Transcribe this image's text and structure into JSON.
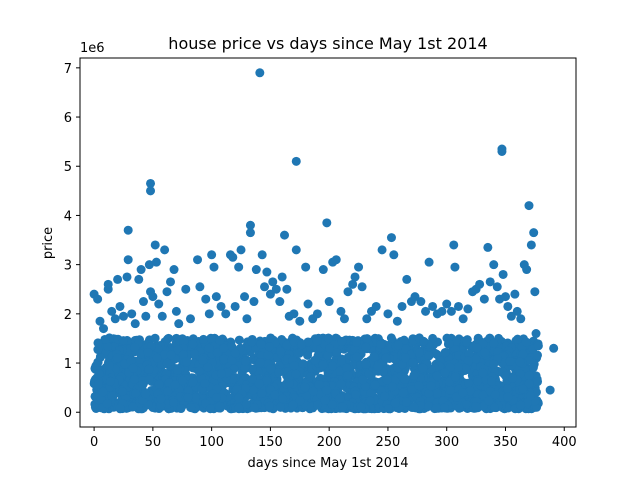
{
  "chart_data": {
    "type": "scatter",
    "title": "house price vs days since May 1st 2014",
    "xlabel": "days since May 1st 2014",
    "ylabel": "price",
    "y_offset_label": "1e6",
    "xlim": [
      -12,
      410
    ],
    "ylim": [
      -300000,
      7200000
    ],
    "xticks": [
      0,
      50,
      100,
      150,
      200,
      250,
      300,
      350,
      400
    ],
    "xtick_labels": [
      "0",
      "50",
      "100",
      "150",
      "200",
      "250",
      "300",
      "350",
      "400"
    ],
    "yticks": [
      0,
      1000000,
      2000000,
      3000000,
      4000000,
      5000000,
      6000000,
      7000000
    ],
    "ytick_labels": [
      "0",
      "1",
      "2",
      "3",
      "4",
      "5",
      "6",
      "7"
    ],
    "grid": false,
    "color": "#1f77b4",
    "dense_band": {
      "x_range": [
        0,
        378
      ],
      "price_range": [
        70000,
        1000000
      ],
      "note": "thousands of points form a solid band across all days"
    },
    "points": [
      {
        "x": 0,
        "y": 2400000
      },
      {
        "x": 3,
        "y": 2300000
      },
      {
        "x": 5,
        "y": 1850000
      },
      {
        "x": 8,
        "y": 1700000
      },
      {
        "x": 12,
        "y": 2500000
      },
      {
        "x": 12,
        "y": 2600000
      },
      {
        "x": 15,
        "y": 2050000
      },
      {
        "x": 18,
        "y": 1900000
      },
      {
        "x": 20,
        "y": 2700000
      },
      {
        "x": 22,
        "y": 2150000
      },
      {
        "x": 25,
        "y": 1950000
      },
      {
        "x": 28,
        "y": 2750000
      },
      {
        "x": 29,
        "y": 3700000
      },
      {
        "x": 29,
        "y": 3100000
      },
      {
        "x": 32,
        "y": 2000000
      },
      {
        "x": 35,
        "y": 1800000
      },
      {
        "x": 38,
        "y": 2700000
      },
      {
        "x": 40,
        "y": 2900000
      },
      {
        "x": 42,
        "y": 2250000
      },
      {
        "x": 44,
        "y": 1950000
      },
      {
        "x": 47,
        "y": 3000000
      },
      {
        "x": 48,
        "y": 4650000
      },
      {
        "x": 48,
        "y": 4500000
      },
      {
        "x": 48,
        "y": 2450000
      },
      {
        "x": 50,
        "y": 2350000
      },
      {
        "x": 52,
        "y": 3400000
      },
      {
        "x": 53,
        "y": 3050000
      },
      {
        "x": 55,
        "y": 2200000
      },
      {
        "x": 58,
        "y": 1950000
      },
      {
        "x": 60,
        "y": 3300000
      },
      {
        "x": 62,
        "y": 2450000
      },
      {
        "x": 65,
        "y": 2650000
      },
      {
        "x": 68,
        "y": 2900000
      },
      {
        "x": 70,
        "y": 2050000
      },
      {
        "x": 72,
        "y": 1800000
      },
      {
        "x": 78,
        "y": 2500000
      },
      {
        "x": 82,
        "y": 1900000
      },
      {
        "x": 88,
        "y": 3100000
      },
      {
        "x": 90,
        "y": 2550000
      },
      {
        "x": 95,
        "y": 2300000
      },
      {
        "x": 98,
        "y": 2000000
      },
      {
        "x": 100,
        "y": 3200000
      },
      {
        "x": 102,
        "y": 2950000
      },
      {
        "x": 104,
        "y": 2350000
      },
      {
        "x": 108,
        "y": 2150000
      },
      {
        "x": 112,
        "y": 2000000
      },
      {
        "x": 116,
        "y": 3200000
      },
      {
        "x": 118,
        "y": 3150000
      },
      {
        "x": 120,
        "y": 2150000
      },
      {
        "x": 123,
        "y": 2950000
      },
      {
        "x": 125,
        "y": 3300000
      },
      {
        "x": 128,
        "y": 2350000
      },
      {
        "x": 130,
        "y": 1900000
      },
      {
        "x": 133,
        "y": 3800000
      },
      {
        "x": 133,
        "y": 3650000
      },
      {
        "x": 136,
        "y": 2250000
      },
      {
        "x": 138,
        "y": 2900000
      },
      {
        "x": 141,
        "y": 6900000
      },
      {
        "x": 143,
        "y": 3200000
      },
      {
        "x": 145,
        "y": 2550000
      },
      {
        "x": 147,
        "y": 2850000
      },
      {
        "x": 150,
        "y": 2400000
      },
      {
        "x": 152,
        "y": 2650000
      },
      {
        "x": 155,
        "y": 2500000
      },
      {
        "x": 158,
        "y": 2250000
      },
      {
        "x": 160,
        "y": 2750000
      },
      {
        "x": 162,
        "y": 3600000
      },
      {
        "x": 164,
        "y": 2500000
      },
      {
        "x": 166,
        "y": 1950000
      },
      {
        "x": 170,
        "y": 2000000
      },
      {
        "x": 172,
        "y": 5100000
      },
      {
        "x": 172,
        "y": 3300000
      },
      {
        "x": 175,
        "y": 1850000
      },
      {
        "x": 180,
        "y": 2950000
      },
      {
        "x": 182,
        "y": 2200000
      },
      {
        "x": 186,
        "y": 1900000
      },
      {
        "x": 190,
        "y": 2000000
      },
      {
        "x": 195,
        "y": 2900000
      },
      {
        "x": 198,
        "y": 3850000
      },
      {
        "x": 200,
        "y": 2250000
      },
      {
        "x": 203,
        "y": 3050000
      },
      {
        "x": 206,
        "y": 3100000
      },
      {
        "x": 210,
        "y": 2050000
      },
      {
        "x": 213,
        "y": 1900000
      },
      {
        "x": 216,
        "y": 2450000
      },
      {
        "x": 220,
        "y": 2600000
      },
      {
        "x": 222,
        "y": 2750000
      },
      {
        "x": 225,
        "y": 2950000
      },
      {
        "x": 228,
        "y": 2550000
      },
      {
        "x": 232,
        "y": 1900000
      },
      {
        "x": 236,
        "y": 2050000
      },
      {
        "x": 240,
        "y": 2150000
      },
      {
        "x": 245,
        "y": 3300000
      },
      {
        "x": 250,
        "y": 2000000
      },
      {
        "x": 253,
        "y": 3550000
      },
      {
        "x": 255,
        "y": 3200000
      },
      {
        "x": 258,
        "y": 1850000
      },
      {
        "x": 262,
        "y": 2150000
      },
      {
        "x": 266,
        "y": 2700000
      },
      {
        "x": 270,
        "y": 2250000
      },
      {
        "x": 273,
        "y": 2350000
      },
      {
        "x": 278,
        "y": 2250000
      },
      {
        "x": 282,
        "y": 2050000
      },
      {
        "x": 285,
        "y": 3050000
      },
      {
        "x": 288,
        "y": 2150000
      },
      {
        "x": 292,
        "y": 2000000
      },
      {
        "x": 296,
        "y": 2050000
      },
      {
        "x": 300,
        "y": 2200000
      },
      {
        "x": 304,
        "y": 2050000
      },
      {
        "x": 306,
        "y": 3400000
      },
      {
        "x": 307,
        "y": 2950000
      },
      {
        "x": 310,
        "y": 2150000
      },
      {
        "x": 314,
        "y": 1900000
      },
      {
        "x": 318,
        "y": 2100000
      },
      {
        "x": 322,
        "y": 2450000
      },
      {
        "x": 325,
        "y": 2500000
      },
      {
        "x": 328,
        "y": 2600000
      },
      {
        "x": 332,
        "y": 2300000
      },
      {
        "x": 335,
        "y": 3350000
      },
      {
        "x": 337,
        "y": 2650000
      },
      {
        "x": 340,
        "y": 3000000
      },
      {
        "x": 343,
        "y": 2550000
      },
      {
        "x": 345,
        "y": 2300000
      },
      {
        "x": 347,
        "y": 5350000
      },
      {
        "x": 347,
        "y": 5300000
      },
      {
        "x": 348,
        "y": 2800000
      },
      {
        "x": 350,
        "y": 2350000
      },
      {
        "x": 352,
        "y": 2150000
      },
      {
        "x": 355,
        "y": 1950000
      },
      {
        "x": 358,
        "y": 2400000
      },
      {
        "x": 360,
        "y": 2050000
      },
      {
        "x": 363,
        "y": 1900000
      },
      {
        "x": 366,
        "y": 3000000
      },
      {
        "x": 368,
        "y": 2900000
      },
      {
        "x": 370,
        "y": 4200000
      },
      {
        "x": 372,
        "y": 3400000
      },
      {
        "x": 374,
        "y": 3650000
      },
      {
        "x": 375,
        "y": 2450000
      },
      {
        "x": 376,
        "y": 1600000
      },
      {
        "x": 378,
        "y": 1350000
      },
      {
        "x": 388,
        "y": 450000
      },
      {
        "x": 391,
        "y": 1300000
      }
    ]
  }
}
